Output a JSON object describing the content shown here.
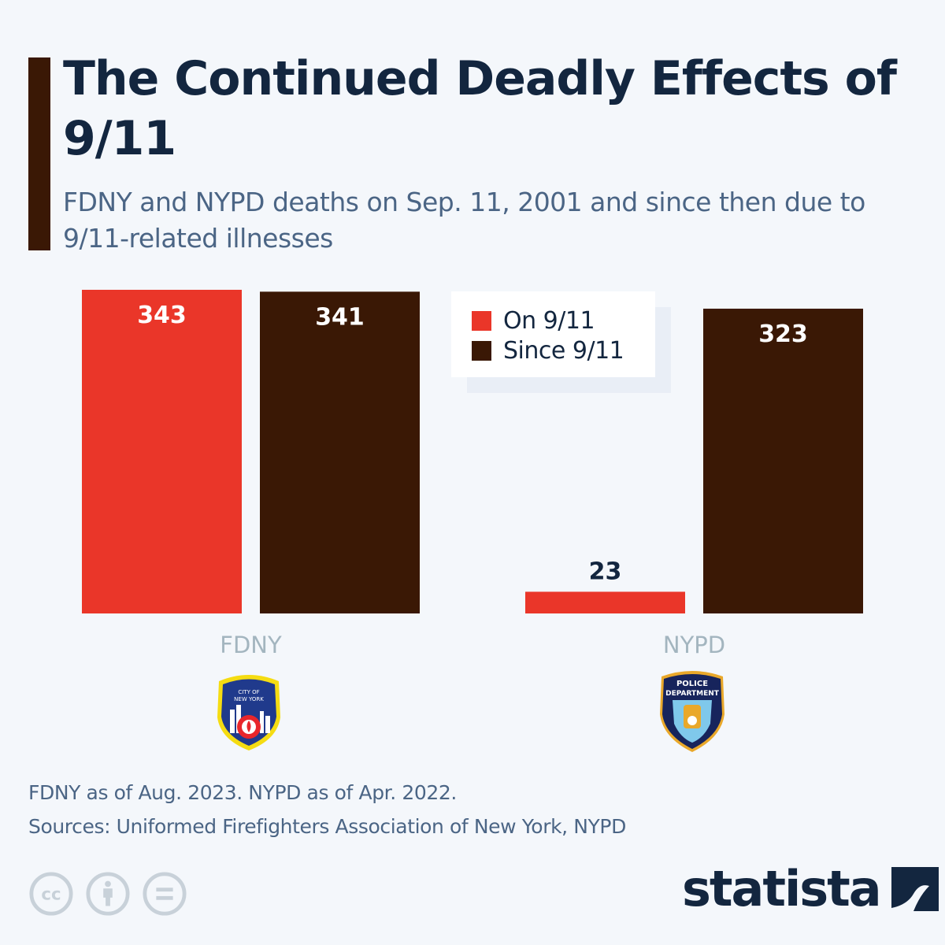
{
  "header": {
    "title": "The Continued Deadly Effects of 9/11",
    "subtitle": "FDNY and NYPD deaths on Sep. 11, 2001 and since then due to 9/11-related illnesses"
  },
  "legend": [
    {
      "label": "On 9/11",
      "color": "#ea3629"
    },
    {
      "label": "Since 9/11",
      "color": "#3a1805"
    }
  ],
  "logos": [
    {
      "name": "fdny-patch-icon",
      "label": "Fire Department City of New York"
    },
    {
      "name": "nypd-patch-icon",
      "label": "Police Department City of New York"
    }
  ],
  "footer": {
    "note": "FDNY as of Aug. 2023. NYPD as of Apr. 2022.",
    "sources": "Sources: Uniformed Firefighters Association of New York, NYPD",
    "brand": "statista",
    "license_icons": [
      "cc-icon",
      "attribution-icon",
      "no-derivatives-icon"
    ]
  },
  "chart_data": {
    "type": "bar",
    "title": "The Continued Deadly Effects of 9/11",
    "subtitle": "FDNY and NYPD deaths on Sep. 11, 2001 and since then due to 9/11-related illnesses",
    "categories": [
      "FDNY",
      "NYPD"
    ],
    "series": [
      {
        "name": "On 9/11",
        "color": "#ea3629",
        "values": [
          343,
          23
        ]
      },
      {
        "name": "Since 9/11",
        "color": "#3a1805",
        "values": [
          341,
          323
        ]
      }
    ],
    "xlabel": "",
    "ylabel": "",
    "ylim": [
      0,
      343
    ],
    "grid": false,
    "legend_position": "top-center",
    "data_labels": true
  }
}
